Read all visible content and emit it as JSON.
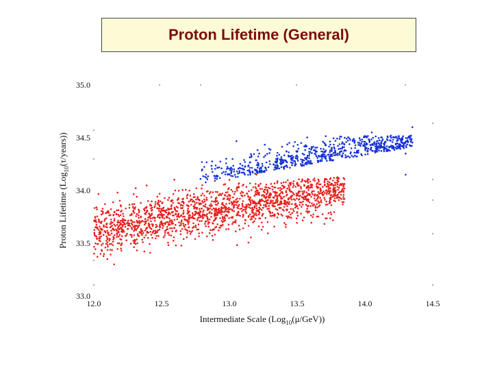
{
  "header": {
    "title": "Proton Lifetime (General)"
  },
  "chart_data": {
    "type": "scatter",
    "title": "Proton Lifetime (General)",
    "xlabel": "Intermediate Scale (Log10(μ/GeV))",
    "ylabel": "Proton Lifetime (Log10(τ/years))",
    "ylabel_main": "Proton Lifetime (Log",
    "ylabel_sub": "10",
    "ylabel_rest": "(τ/years))",
    "xlabel_main": "Intermediate Scale (Log",
    "xlabel_sub": "10",
    "xlabel_rest": "(μ/GeV))",
    "xlim": [
      12.0,
      14.5
    ],
    "ylim": [
      33.0,
      35.0
    ],
    "xticks": [
      "12.0",
      "12.5",
      "13.0",
      "13.5",
      "14.0",
      "14.5"
    ],
    "yticks": [
      "33.0",
      "33.5",
      "34.0",
      "34.5",
      "35.0"
    ],
    "grid": false,
    "colors": {
      "red": "#e8201c",
      "blue": "#1530d8"
    },
    "series": [
      {
        "name": "red",
        "color": "#e8201c",
        "approx_points": 1700,
        "points": [
          [
            12.05,
            33.6
          ],
          [
            12.1,
            33.55
          ],
          [
            12.2,
            33.65
          ],
          [
            12.3,
            33.7
          ],
          [
            12.4,
            33.72
          ],
          [
            12.5,
            33.78
          ],
          [
            12.6,
            33.82
          ],
          [
            12.7,
            33.85
          ],
          [
            12.8,
            33.9
          ],
          [
            12.9,
            33.92
          ],
          [
            13.0,
            33.95
          ],
          [
            13.1,
            33.98
          ],
          [
            13.2,
            34.0
          ],
          [
            13.3,
            34.02
          ],
          [
            13.4,
            34.04
          ],
          [
            13.5,
            34.06
          ],
          [
            13.6,
            34.05
          ],
          [
            13.8,
            34.1
          ],
          [
            12.05,
            33.4
          ],
          [
            12.1,
            33.35
          ],
          [
            12.15,
            33.3
          ],
          [
            12.2,
            33.45
          ],
          [
            12.3,
            33.5
          ],
          [
            12.4,
            33.55
          ],
          [
            12.55,
            33.6
          ],
          [
            12.7,
            33.65
          ],
          [
            12.8,
            33.6
          ],
          [
            12.95,
            33.7
          ],
          [
            13.1,
            33.75
          ],
          [
            13.3,
            33.8
          ],
          [
            13.5,
            33.85
          ],
          [
            12.1,
            33.8
          ],
          [
            12.2,
            33.85
          ],
          [
            12.4,
            33.9
          ],
          [
            12.6,
            34.0
          ],
          [
            12.8,
            34.05
          ],
          [
            13.0,
            34.1
          ],
          [
            13.2,
            34.15
          ]
        ]
      },
      {
        "name": "blue",
        "color": "#1530d8",
        "approx_points": 700,
        "points": [
          [
            12.8,
            34.2
          ],
          [
            13.0,
            34.15
          ],
          [
            13.1,
            34.2
          ],
          [
            13.2,
            34.18
          ],
          [
            13.3,
            34.25
          ],
          [
            13.4,
            34.22
          ],
          [
            13.5,
            34.3
          ],
          [
            13.6,
            34.28
          ],
          [
            13.7,
            34.32
          ],
          [
            13.8,
            34.35
          ],
          [
            13.9,
            34.4
          ],
          [
            14.0,
            34.42
          ],
          [
            14.1,
            34.45
          ],
          [
            14.2,
            34.4
          ],
          [
            14.3,
            34.35
          ],
          [
            14.35,
            34.6
          ],
          [
            14.3,
            34.15
          ],
          [
            13.7,
            34.45
          ],
          [
            13.85,
            34.5
          ],
          [
            14.05,
            34.55
          ]
        ]
      }
    ]
  }
}
